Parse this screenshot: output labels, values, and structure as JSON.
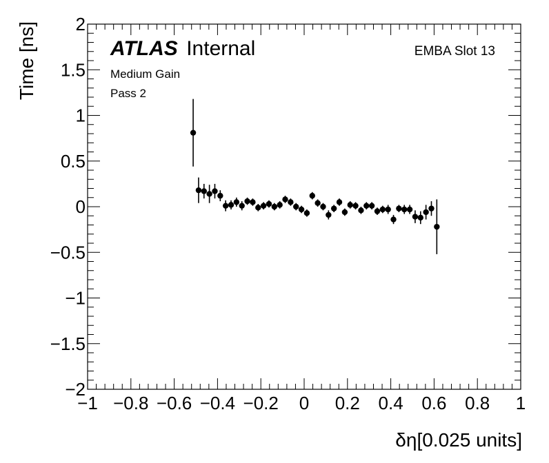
{
  "chart_data": {
    "type": "scatter",
    "xlabel": "δη[0.025 units]",
    "ylabel": "Time [ns]",
    "xlim": [
      -1,
      1
    ],
    "ylim": [
      -2,
      2
    ],
    "x_ticks": [
      -1,
      -0.8,
      -0.6,
      -0.4,
      -0.2,
      0,
      0.2,
      0.4,
      0.6,
      0.8,
      1
    ],
    "x_tick_labels": [
      "−1",
      "−0.8",
      "−0.6",
      "−0.4",
      "−0.2",
      "0",
      "0.2",
      "0.4",
      "0.6",
      "0.8",
      "1"
    ],
    "y_ticks": [
      -2,
      -1.5,
      -1,
      -0.5,
      0,
      0.5,
      1,
      1.5,
      2
    ],
    "y_tick_labels": [
      "−2",
      "−1.5",
      "−1",
      "−0.5",
      "0",
      "0.5",
      "1",
      "1.5",
      "2"
    ],
    "grid": false,
    "annotations": {
      "experiment": "ATLAS",
      "status": "Internal",
      "gain": "Medium Gain",
      "pass": "Pass 2",
      "module": "EMBA Slot 13"
    },
    "marker_color": "#000000",
    "points": [
      {
        "x": -0.5125,
        "y": 0.81,
        "err": 0.37
      },
      {
        "x": -0.4875,
        "y": 0.18,
        "err": 0.14
      },
      {
        "x": -0.4625,
        "y": 0.17,
        "err": 0.08
      },
      {
        "x": -0.4375,
        "y": 0.14,
        "err": 0.1
      },
      {
        "x": -0.4125,
        "y": 0.17,
        "err": 0.08
      },
      {
        "x": -0.3875,
        "y": 0.12,
        "err": 0.06
      },
      {
        "x": -0.3625,
        "y": 0.01,
        "err": 0.06
      },
      {
        "x": -0.3375,
        "y": 0.02,
        "err": 0.05
      },
      {
        "x": -0.3125,
        "y": 0.05,
        "err": 0.05
      },
      {
        "x": -0.2875,
        "y": 0.01,
        "err": 0.05
      },
      {
        "x": -0.2625,
        "y": 0.06,
        "err": 0.04
      },
      {
        "x": -0.2375,
        "y": 0.05,
        "err": 0.04
      },
      {
        "x": -0.2125,
        "y": -0.01,
        "err": 0.04
      },
      {
        "x": -0.1875,
        "y": 0.01,
        "err": 0.04
      },
      {
        "x": -0.1625,
        "y": 0.03,
        "err": 0.04
      },
      {
        "x": -0.1375,
        "y": 0.0,
        "err": 0.04
      },
      {
        "x": -0.1125,
        "y": 0.02,
        "err": 0.04
      },
      {
        "x": -0.0875,
        "y": 0.08,
        "err": 0.04
      },
      {
        "x": -0.0625,
        "y": 0.05,
        "err": 0.04
      },
      {
        "x": -0.0375,
        "y": 0.0,
        "err": 0.04
      },
      {
        "x": -0.0125,
        "y": -0.03,
        "err": 0.04
      },
      {
        "x": 0.0125,
        "y": -0.07,
        "err": 0.04
      },
      {
        "x": 0.0375,
        "y": 0.12,
        "err": 0.04
      },
      {
        "x": 0.0625,
        "y": 0.04,
        "err": 0.04
      },
      {
        "x": 0.0875,
        "y": 0.0,
        "err": 0.04
      },
      {
        "x": 0.1125,
        "y": -0.09,
        "err": 0.05
      },
      {
        "x": 0.1375,
        "y": -0.02,
        "err": 0.04
      },
      {
        "x": 0.1625,
        "y": 0.05,
        "err": 0.04
      },
      {
        "x": 0.1875,
        "y": -0.06,
        "err": 0.04
      },
      {
        "x": 0.2125,
        "y": 0.02,
        "err": 0.04
      },
      {
        "x": 0.2375,
        "y": 0.01,
        "err": 0.04
      },
      {
        "x": 0.2625,
        "y": -0.04,
        "err": 0.04
      },
      {
        "x": 0.2875,
        "y": 0.01,
        "err": 0.04
      },
      {
        "x": 0.3125,
        "y": 0.01,
        "err": 0.04
      },
      {
        "x": 0.3375,
        "y": -0.05,
        "err": 0.04
      },
      {
        "x": 0.3625,
        "y": -0.03,
        "err": 0.04
      },
      {
        "x": 0.3875,
        "y": -0.03,
        "err": 0.05
      },
      {
        "x": 0.4125,
        "y": -0.14,
        "err": 0.05
      },
      {
        "x": 0.4375,
        "y": -0.02,
        "err": 0.04
      },
      {
        "x": 0.4625,
        "y": -0.03,
        "err": 0.05
      },
      {
        "x": 0.4875,
        "y": -0.03,
        "err": 0.05
      },
      {
        "x": 0.5125,
        "y": -0.11,
        "err": 0.07
      },
      {
        "x": 0.5375,
        "y": -0.12,
        "err": 0.07
      },
      {
        "x": 0.5625,
        "y": -0.06,
        "err": 0.08
      },
      {
        "x": 0.5875,
        "y": -0.02,
        "err": 0.08
      },
      {
        "x": 0.6125,
        "y": -0.22,
        "err": 0.3
      }
    ]
  }
}
